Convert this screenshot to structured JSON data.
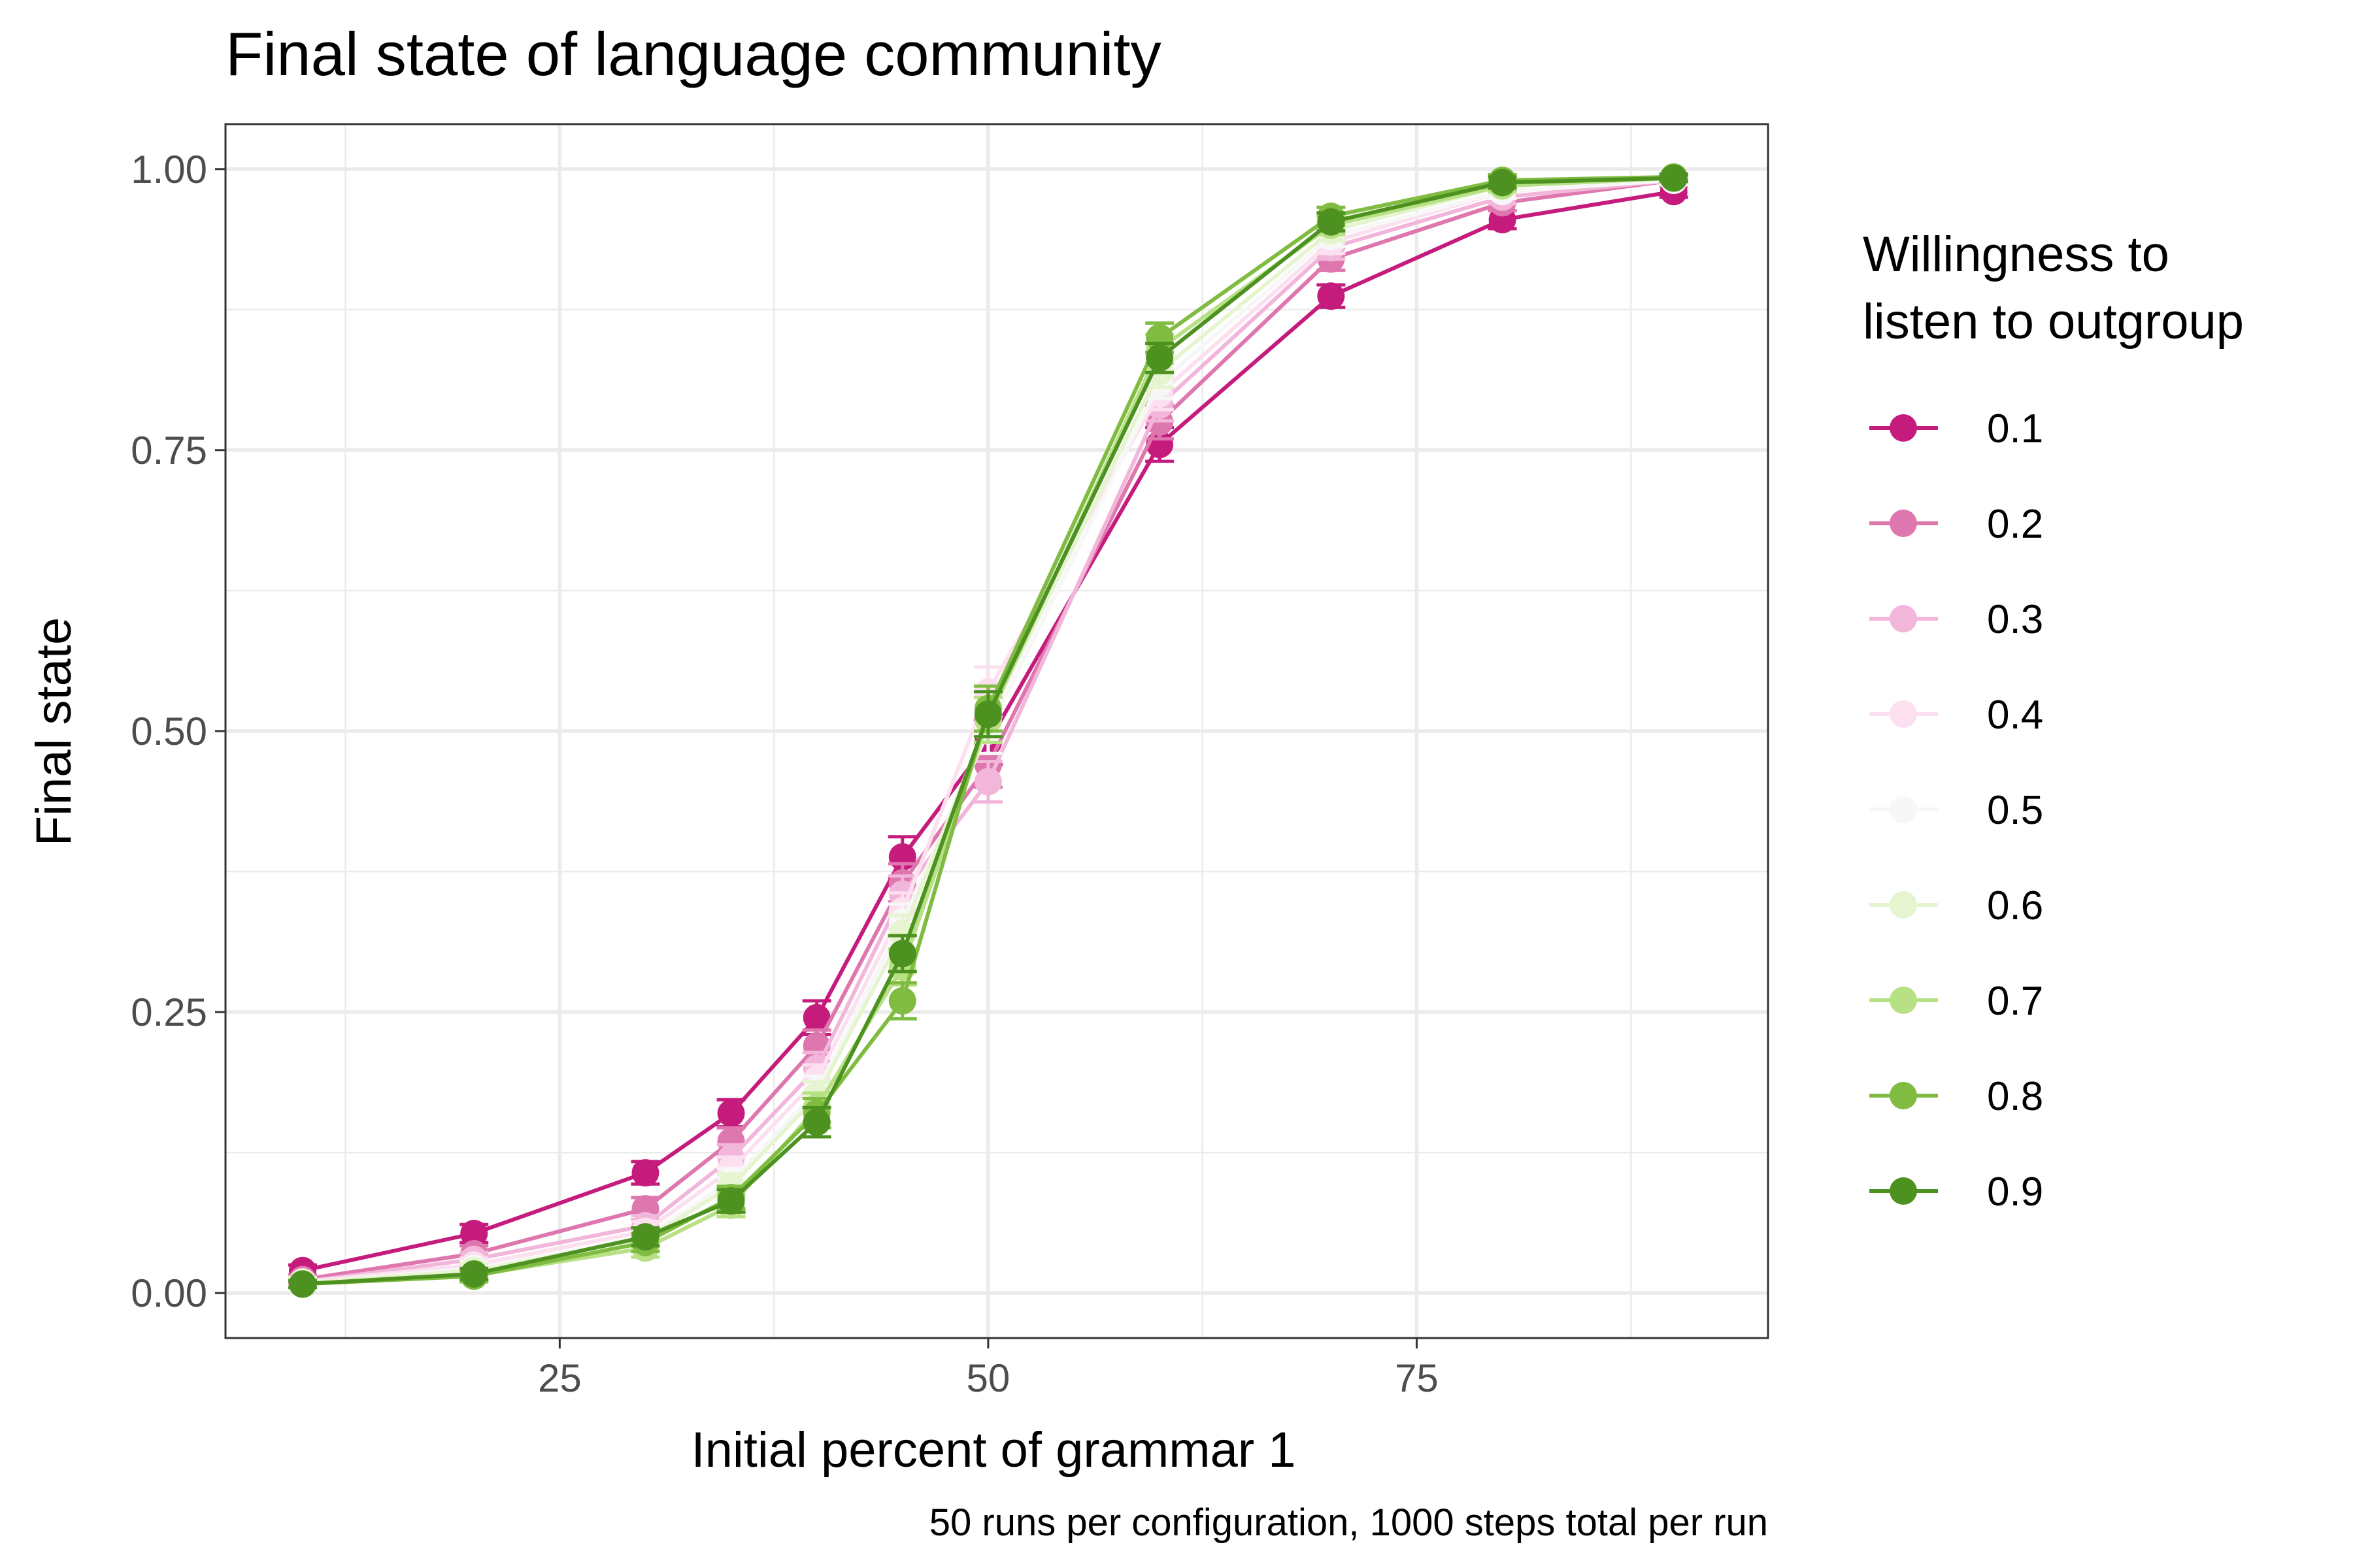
{
  "chart_data": {
    "type": "line",
    "title": "Final state of language community",
    "xlabel": "Initial percent of grammar 1",
    "ylabel": "Final state",
    "caption": "50 runs per configuration, 1000 steps total per run",
    "legend_title_lines": [
      "Willingness to",
      "listen to outgroup"
    ],
    "legend_position": "right",
    "grid": true,
    "xlim": [
      5.5,
      95.5
    ],
    "ylim": [
      -0.04,
      1.04
    ],
    "x_ticks": [
      25,
      50,
      75
    ],
    "x_tick_labels": [
      "25",
      "50",
      "75"
    ],
    "y_ticks": [
      0,
      0.25,
      0.5,
      0.75,
      1
    ],
    "y_tick_labels": [
      "0.00",
      "0.25",
      "0.50",
      "0.75",
      "1.00"
    ],
    "x": [
      10,
      20,
      30,
      35,
      40,
      45,
      50,
      60,
      70,
      80,
      90
    ],
    "series": [
      {
        "name": "0.1",
        "color": "#c51b7d",
        "values": [
          0.02,
          0.053,
          0.107,
          0.16,
          0.245,
          0.388,
          0.49,
          0.755,
          0.887,
          0.955,
          0.98
        ],
        "err": [
          0.005,
          0.008,
          0.01,
          0.012,
          0.015,
          0.018,
          0.02,
          0.015,
          0.01,
          0.008,
          0.005
        ]
      },
      {
        "name": "0.2",
        "color": "#de77ae",
        "values": [
          0.012,
          0.035,
          0.075,
          0.135,
          0.22,
          0.365,
          0.47,
          0.775,
          0.92,
          0.97,
          0.99
        ],
        "err": [
          0.004,
          0.007,
          0.01,
          0.012,
          0.014,
          0.017,
          0.02,
          0.015,
          0.01,
          0.007,
          0.004
        ]
      },
      {
        "name": "0.3",
        "color": "#f1b6da",
        "values": [
          0.01,
          0.03,
          0.06,
          0.12,
          0.2,
          0.355,
          0.455,
          0.79,
          0.93,
          0.975,
          0.99
        ],
        "err": [
          0.004,
          0.006,
          0.009,
          0.012,
          0.014,
          0.016,
          0.018,
          0.014,
          0.01,
          0.006,
          0.004
        ]
      },
      {
        "name": "0.4",
        "color": "#fde0ef",
        "values": [
          0.01,
          0.025,
          0.055,
          0.11,
          0.19,
          0.34,
          0.535,
          0.8,
          0.935,
          0.98,
          0.99
        ],
        "err": [
          0.004,
          0.006,
          0.009,
          0.011,
          0.013,
          0.016,
          0.022,
          0.014,
          0.01,
          0.006,
          0.004
        ]
      },
      {
        "name": "0.5",
        "color": "#f7f7f7",
        "values": [
          0.009,
          0.022,
          0.05,
          0.1,
          0.18,
          0.33,
          0.5,
          0.81,
          0.94,
          0.98,
          0.99
        ],
        "err": [
          0.004,
          0.006,
          0.008,
          0.011,
          0.013,
          0.016,
          0.02,
          0.014,
          0.009,
          0.006,
          0.004
        ]
      },
      {
        "name": "0.6",
        "color": "#e6f5d0",
        "values": [
          0.009,
          0.02,
          0.048,
          0.095,
          0.175,
          0.32,
          0.51,
          0.82,
          0.945,
          0.985,
          0.992
        ],
        "err": [
          0.004,
          0.006,
          0.008,
          0.011,
          0.013,
          0.016,
          0.02,
          0.014,
          0.009,
          0.006,
          0.004
        ]
      },
      {
        "name": "0.7",
        "color": "#b8e186",
        "values": [
          0.008,
          0.016,
          0.04,
          0.078,
          0.165,
          0.29,
          0.51,
          0.84,
          0.95,
          0.985,
          0.992
        ],
        "err": [
          0.003,
          0.005,
          0.008,
          0.01,
          0.013,
          0.016,
          0.02,
          0.013,
          0.008,
          0.005,
          0.003
        ]
      },
      {
        "name": "0.8",
        "color": "#7fbc41",
        "values": [
          0.008,
          0.015,
          0.045,
          0.085,
          0.16,
          0.26,
          0.52,
          0.85,
          0.958,
          0.99,
          0.993
        ],
        "err": [
          0.003,
          0.005,
          0.008,
          0.01,
          0.013,
          0.016,
          0.02,
          0.013,
          0.008,
          0.005,
          0.003
        ]
      },
      {
        "name": "0.9",
        "color": "#4d9221",
        "values": [
          0.008,
          0.017,
          0.05,
          0.082,
          0.152,
          0.302,
          0.515,
          0.832,
          0.953,
          0.988,
          0.992
        ],
        "err": [
          0.003,
          0.005,
          0.008,
          0.01,
          0.013,
          0.016,
          0.02,
          0.013,
          0.008,
          0.005,
          0.003
        ]
      }
    ]
  }
}
